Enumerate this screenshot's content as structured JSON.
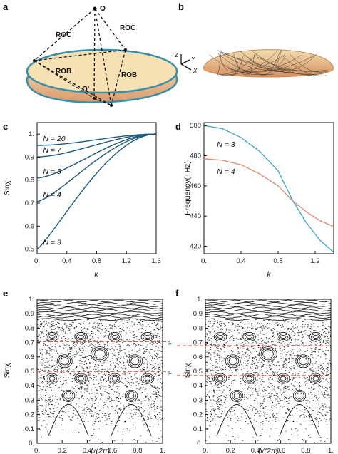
{
  "panels": {
    "a": {
      "letter": "a",
      "labels": {
        "top_point": "O",
        "inner_point": "O'",
        "roc_left": "ROC",
        "roc_right": "ROC",
        "rob_left": "ROB",
        "rob_right": "ROB"
      }
    },
    "b": {
      "letter": "b",
      "axes": {
        "z": "Z",
        "y": "Y",
        "x": "X"
      }
    }
  },
  "colors": {
    "dark_teal": "#1c5a78",
    "light_blue": "#3aa8c8",
    "salmon": "#e08a70",
    "red_dash": "#e02020",
    "mirror_rim": "#3a8fa8",
    "mirror_fill_top": "#f6dfb0",
    "mirror_fill_bottom": "#e0a070"
  },
  "chart_data": [
    {
      "panel": "c",
      "type": "line",
      "xlabel": "k",
      "ylabel": "Sinχ",
      "xlim": [
        0,
        1.6
      ],
      "ylim": [
        0.48,
        1.05
      ],
      "xticks": [
        "0.",
        "0.4",
        "0.8",
        "1.2",
        "1.6"
      ],
      "yticks": [
        "0.5",
        "0.6",
        "0.7",
        "0.8",
        "0.9",
        "1."
      ],
      "series": [
        {
          "name": "N = 20",
          "k0": 0.951
        },
        {
          "name": "N = 7",
          "k0": 0.901
        },
        {
          "name": "N = 5",
          "k0": 0.809
        },
        {
          "name": "N = 4",
          "k0": 0.707
        },
        {
          "name": "N = 3",
          "k0": 0.5
        }
      ]
    },
    {
      "panel": "d",
      "type": "line",
      "xlabel": "k",
      "ylabel": "Frequency(THz)",
      "xlim": [
        0,
        1.4
      ],
      "ylim": [
        415,
        502
      ],
      "xticks": [
        "0.",
        "0.4",
        "0.8",
        "1.2"
      ],
      "yticks": [
        "420",
        "440",
        "460",
        "480",
        "500"
      ],
      "series": [
        {
          "name": "N = 3",
          "color": "light_blue",
          "points": [
            [
              0,
              500
            ],
            [
              0.2,
              498
            ],
            [
              0.4,
              492
            ],
            [
              0.6,
              483
            ],
            [
              0.8,
              470
            ],
            [
              0.96,
              450
            ],
            [
              1.1,
              436
            ],
            [
              1.25,
              424
            ],
            [
              1.4,
              416
            ]
          ]
        },
        {
          "name": "N = 4",
          "color": "salmon",
          "points": [
            [
              0,
              478
            ],
            [
              0.2,
              477
            ],
            [
              0.4,
              474
            ],
            [
              0.6,
              468
            ],
            [
              0.8,
              460
            ],
            [
              0.96,
              450
            ],
            [
              1.1,
              443
            ],
            [
              1.25,
              437
            ],
            [
              1.4,
              433
            ]
          ]
        }
      ]
    },
    {
      "panel": "e",
      "type": "scatter",
      "xlabel": "ϕ/(2π)",
      "ylabel": "Sinχ",
      "xlim": [
        0,
        1
      ],
      "ylim": [
        0,
        1
      ],
      "xticks": [
        "0.",
        "0.2",
        "0.4",
        "0.6",
        "0.8",
        "1."
      ],
      "yticks": [
        "0.",
        "0.1",
        "0.2",
        "0.3",
        "0.4",
        "0.5",
        "0.6",
        "0.7",
        "0.8",
        "0.9",
        "1."
      ],
      "red_lines": [
        0.707,
        0.5
      ]
    },
    {
      "panel": "f",
      "type": "scatter",
      "xlabel": "ϕ/(2π)",
      "ylabel": "Sinχ",
      "xlim": [
        0,
        1
      ],
      "ylim": [
        0,
        1
      ],
      "xticks": [
        "0.",
        "0.2",
        "0.4",
        "0.6",
        "0.8",
        "1."
      ],
      "yticks": [
        "0.",
        "0.1",
        "0.2",
        "0.3",
        "0.4",
        "0.5",
        "0.6",
        "0.7",
        "0.8",
        "0.9",
        "1."
      ],
      "red_lines": [
        0.707,
        0.5
      ]
    }
  ]
}
